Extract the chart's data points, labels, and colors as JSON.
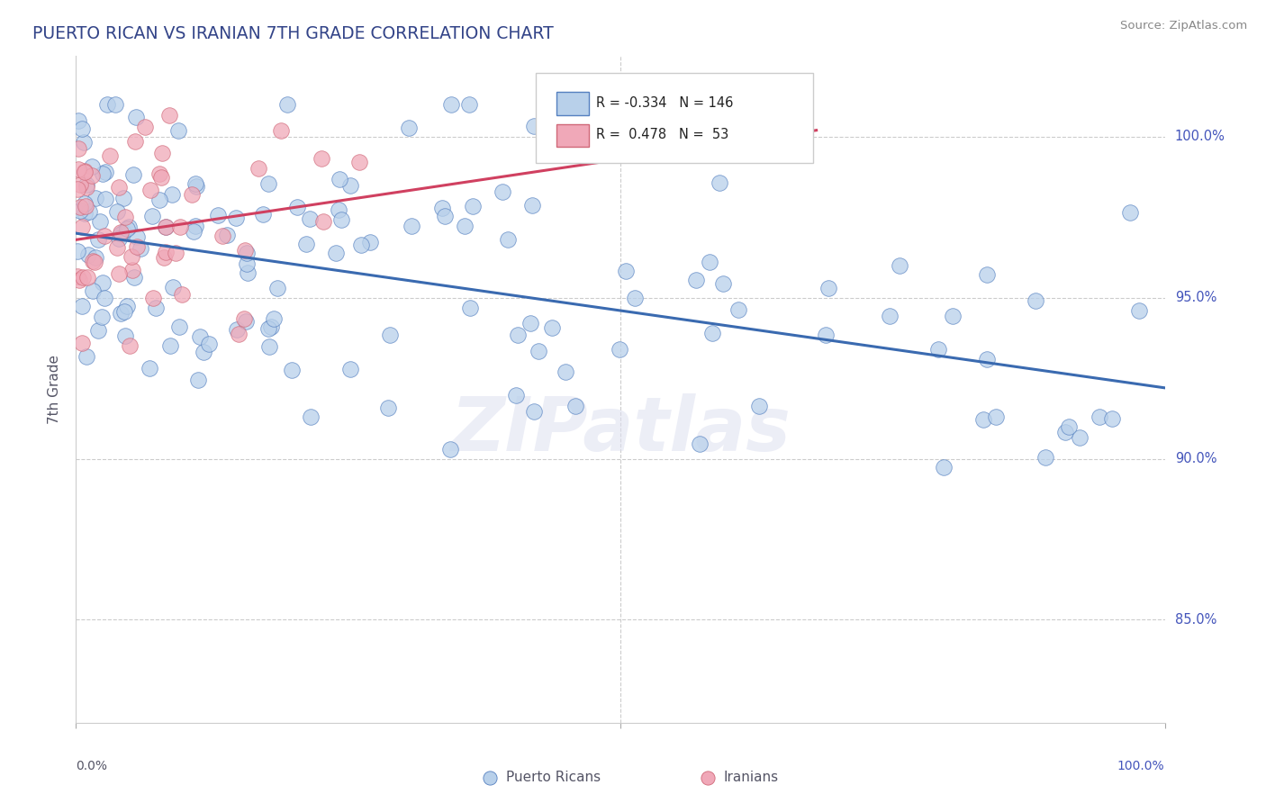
{
  "title": "PUERTO RICAN VS IRANIAN 7TH GRADE CORRELATION CHART",
  "source": "Source: ZipAtlas.com",
  "ylabel": "7th Grade",
  "legend_blue_r": "-0.334",
  "legend_blue_n": "146",
  "legend_pink_r": "0.478",
  "legend_pink_n": "53",
  "ytick_values": [
    0.85,
    0.9,
    0.95,
    1.0
  ],
  "ytick_labels": [
    "85.0%",
    "90.0%",
    "95.0%",
    "100.0%"
  ],
  "xlim": [
    0.0,
    1.0
  ],
  "ylim": [
    0.818,
    1.025
  ],
  "blue_fill": "#b8d0ea",
  "blue_edge": "#5580c0",
  "pink_fill": "#f0a8b8",
  "pink_edge": "#d06878",
  "blue_line": "#3a6ab0",
  "pink_line": "#d04060",
  "watermark": "ZIPatlas",
  "blue_trend_x": [
    0.0,
    1.0
  ],
  "blue_trend_y": [
    0.97,
    0.922
  ],
  "pink_trend_x": [
    0.0,
    0.68
  ],
  "pink_trend_y": [
    0.968,
    1.002
  ]
}
